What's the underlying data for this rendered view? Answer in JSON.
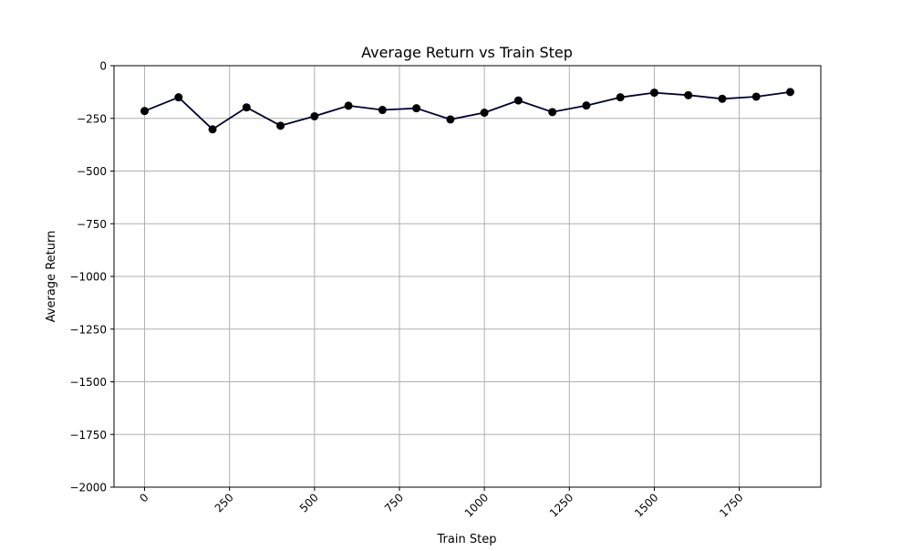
{
  "chart_data": {
    "type": "line",
    "title": "Average Return vs Train Step",
    "xlabel": "Train Step",
    "ylabel": "Average Return",
    "xlim": [
      -90,
      1990
    ],
    "ylim": [
      -2000,
      0
    ],
    "xticks": [
      0,
      250,
      500,
      750,
      1000,
      1250,
      1500,
      1750
    ],
    "xtick_labels": [
      "0",
      "250",
      "500",
      "750",
      "1000",
      "1250",
      "1500",
      "1750"
    ],
    "yticks": [
      0,
      -250,
      -500,
      -750,
      -1000,
      -1250,
      -1500,
      -1750,
      -2000
    ],
    "ytick_labels": [
      "0",
      "−250",
      "−500",
      "−750",
      "−1000",
      "−1250",
      "−1500",
      "−1750",
      "−2000"
    ],
    "xtick_rotation_deg": 45,
    "grid": true,
    "line_color": "#000033",
    "marker_color": "#000000",
    "x": [
      0,
      100,
      200,
      300,
      400,
      500,
      600,
      700,
      800,
      900,
      1000,
      1100,
      1200,
      1300,
      1400,
      1500,
      1600,
      1700,
      1800,
      1900
    ],
    "y": [
      -215,
      -150,
      -302,
      -198,
      -285,
      -240,
      -190,
      -210,
      -202,
      -255,
      -223,
      -165,
      -220,
      -189,
      -150,
      -128,
      -140,
      -157,
      -147,
      -125
    ]
  }
}
